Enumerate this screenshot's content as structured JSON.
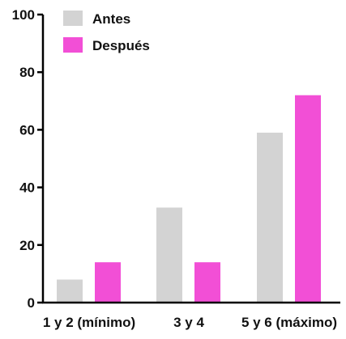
{
  "chart_data": {
    "type": "bar",
    "categories": [
      "1 y 2 (mínimo)",
      "3 y 4",
      "5 y 6 (máximo)"
    ],
    "series": [
      {
        "name": "Antes",
        "values": [
          8,
          33,
          59
        ],
        "color": "#d3d3d3"
      },
      {
        "name": "Después",
        "values": [
          14,
          14,
          72
        ],
        "color": "#f24fd6"
      }
    ],
    "title": "",
    "xlabel": "",
    "ylabel": "",
    "ylim": [
      0,
      100
    ],
    "yticks": [
      "0",
      "20",
      "40",
      "60",
      "80",
      "100"
    ],
    "grid": false,
    "legend_position": "top-left"
  }
}
